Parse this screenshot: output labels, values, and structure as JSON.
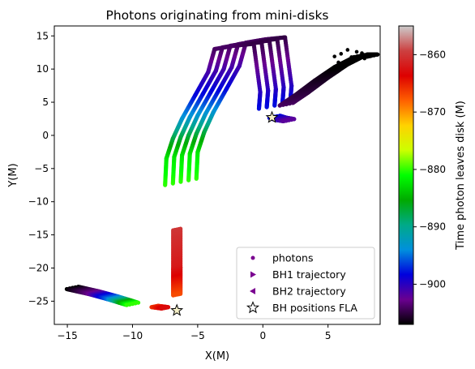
{
  "chart_data": {
    "type": "scatter",
    "title": "Photons originating from mini-disks",
    "xlabel": "X(M)",
    "ylabel": "Y(M)",
    "xlim": [
      -16,
      9
    ],
    "ylim": [
      -28.5,
      16.5
    ],
    "xticks": [
      -15,
      -10,
      -5,
      0,
      5
    ],
    "yticks": [
      15,
      10,
      5,
      0,
      -5,
      -10,
      -15,
      -20,
      -25
    ],
    "grid": false,
    "legend_position": "lower right",
    "colorbar": {
      "label": "Time photon leaves disk (M)",
      "range": [
        -907,
        -855
      ],
      "ticks": [
        -860,
        -870,
        -880,
        -890,
        -900
      ],
      "colormap": "nipy_spectral",
      "stops": [
        "#000000",
        "#6a0090",
        "#0000dd",
        "#0090dd",
        "#00aa88",
        "#00aa00",
        "#00ff00",
        "#ccff00",
        "#ffd200",
        "#ff6000",
        "#dd0000",
        "#cc4040",
        "#cccccc"
      ]
    },
    "legend": [
      {
        "label": "photons",
        "marker": "dot",
        "color": "#7a0090"
      },
      {
        "label": "BH1  trajectory",
        "marker": "triangle-right",
        "color": "#7a0090"
      },
      {
        "label": "BH2  trajectory",
        "marker": "triangle-left",
        "color": "#7a0090"
      },
      {
        "label": "BH positions FLA",
        "marker": "star",
        "color": "#000000"
      }
    ],
    "series": [
      {
        "group": "upper-swirl",
        "points": [
          [
            -6.3,
            -7.0,
            -880
          ],
          [
            -6.2,
            -3.0,
            -882
          ],
          [
            -5.7,
            0.0,
            -887
          ],
          [
            -5.0,
            3.0,
            -893
          ],
          [
            -4.0,
            6.5,
            -898
          ],
          [
            -3.0,
            10.0,
            -901
          ],
          [
            -2.5,
            13.5,
            -904
          ],
          [
            -1.0,
            14.0,
            -904
          ],
          [
            0.5,
            14.3,
            -905
          ],
          [
            1.0,
            7.0,
            -900
          ],
          [
            0.9,
            4.5,
            -898
          ]
        ]
      },
      {
        "group": "small-blob",
        "points": [
          [
            0.9,
            2.8,
            -898
          ],
          [
            1.4,
            2.5,
            -900
          ],
          [
            2.0,
            2.3,
            -902
          ]
        ]
      },
      {
        "group": "upper-right-streak",
        "points": [
          [
            1.8,
            4.7,
            -904
          ],
          [
            3.0,
            6.3,
            -905
          ],
          [
            4.5,
            8.5,
            -906
          ],
          [
            6.0,
            10.5,
            -907
          ],
          [
            7.5,
            12.0,
            -907
          ],
          [
            8.3,
            12.0,
            -907
          ]
        ]
      },
      {
        "group": "vertical-strip",
        "points": [
          [
            -6.6,
            -14.2,
            -860
          ],
          [
            -6.6,
            -20.0,
            -862
          ],
          [
            -6.6,
            -24.0,
            -867
          ]
        ]
      },
      {
        "group": "lower-strip",
        "points": [
          [
            -8.3,
            -25.8,
            -866
          ],
          [
            -7.5,
            -26.0,
            -863
          ]
        ]
      },
      {
        "group": "lower-left-streak",
        "points": [
          [
            -14.6,
            -23.0,
            -907
          ],
          [
            -13.0,
            -23.7,
            -903
          ],
          [
            -11.5,
            -24.5,
            -895
          ],
          [
            -10.0,
            -25.4,
            -880
          ]
        ]
      }
    ],
    "bh_positions_fla": [
      [
        0.7,
        2.7
      ],
      [
        -6.6,
        -26.4
      ]
    ]
  }
}
